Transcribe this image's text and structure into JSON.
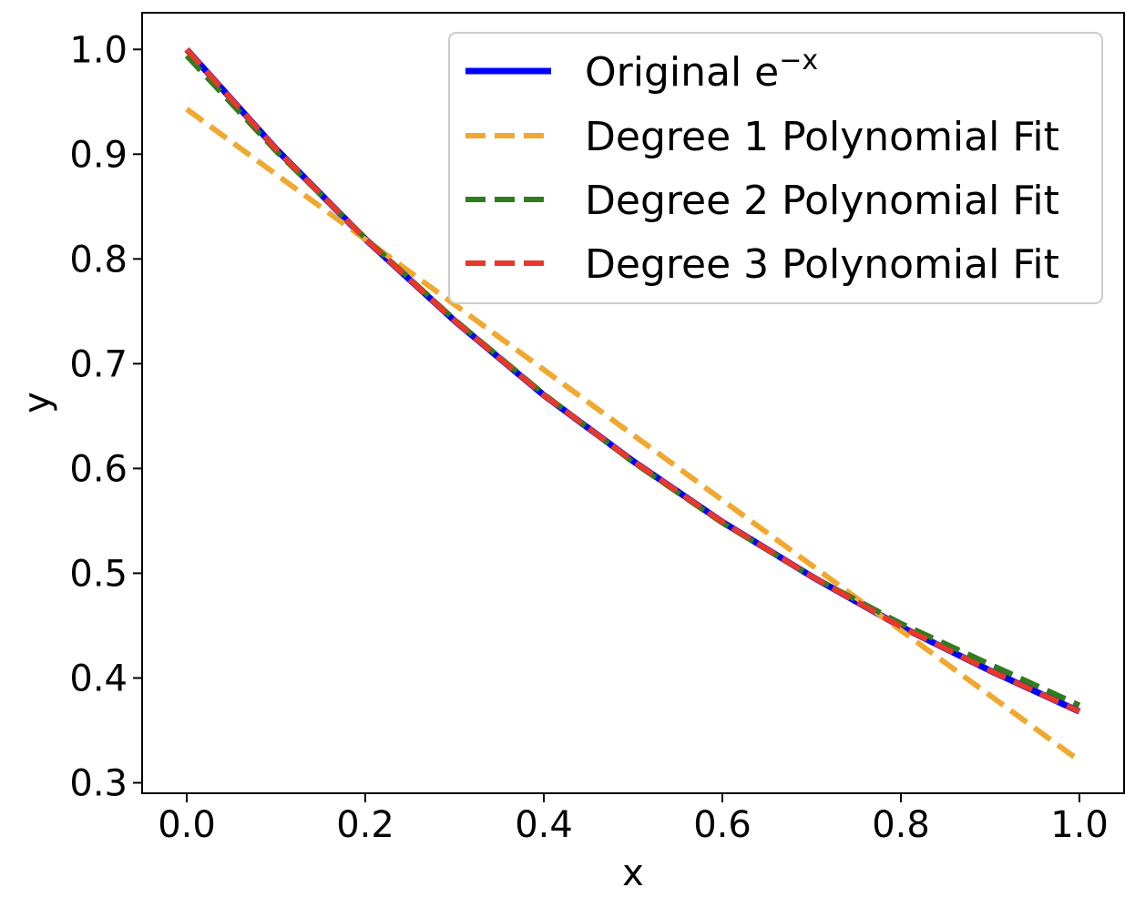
{
  "chart_data": {
    "type": "line",
    "xlabel": "x",
    "ylabel": "y",
    "xlim": [
      -0.05,
      1.05
    ],
    "ylim": [
      0.29,
      1.035
    ],
    "x_ticks": [
      0.0,
      0.2,
      0.4,
      0.6,
      0.8,
      1.0
    ],
    "x_tick_labels": [
      "0.0",
      "0.2",
      "0.4",
      "0.6",
      "0.8",
      "1.0"
    ],
    "y_ticks": [
      0.3,
      0.4,
      0.5,
      0.6,
      0.7,
      0.8,
      0.9,
      1.0
    ],
    "y_tick_labels": [
      "0.3",
      "0.4",
      "0.5",
      "0.6",
      "0.7",
      "0.8",
      "0.9",
      "1.0"
    ],
    "grid": false,
    "legend_position": "top-right",
    "series": [
      {
        "name": "Original e",
        "name_superscript": "−x",
        "style": "solid",
        "color": "#0000ff",
        "x": [
          0.0,
          0.1,
          0.2,
          0.3,
          0.4,
          0.5,
          0.6,
          0.7,
          0.8,
          0.9,
          1.0
        ],
        "y": [
          1.0,
          0.905,
          0.819,
          0.741,
          0.67,
          0.607,
          0.549,
          0.497,
          0.449,
          0.407,
          0.368
        ]
      },
      {
        "name": "Degree 1 Polynomial Fit",
        "style": "dashed",
        "color": "#f0a830",
        "x": [
          0.0,
          1.0
        ],
        "y": [
          0.943,
          0.321
        ]
      },
      {
        "name": "Degree 2 Polynomial Fit",
        "style": "dashed",
        "color": "#2e7d1e",
        "x": [
          0.0,
          0.1,
          0.2,
          0.3,
          0.4,
          0.5,
          0.6,
          0.7,
          0.8,
          0.9,
          1.0
        ],
        "y": [
          0.994,
          0.903,
          0.82,
          0.742,
          0.671,
          0.606,
          0.548,
          0.497,
          0.452,
          0.413,
          0.374
        ]
      },
      {
        "name": "Degree 3 Polynomial Fit",
        "style": "dashed",
        "color": "#e8382a",
        "x": [
          0.0,
          0.1,
          0.2,
          0.3,
          0.4,
          0.5,
          0.6,
          0.7,
          0.8,
          0.9,
          1.0
        ],
        "y": [
          1.0,
          0.905,
          0.819,
          0.741,
          0.67,
          0.607,
          0.549,
          0.497,
          0.449,
          0.407,
          0.368
        ]
      }
    ]
  }
}
